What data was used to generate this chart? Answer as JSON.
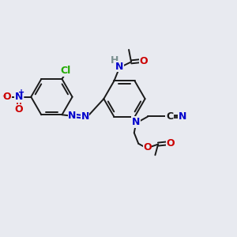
{
  "bg_color": "#e8eaf0",
  "bond_color": "#1a1a1a",
  "bond_width": 1.4,
  "colors": {
    "N": "#0000cc",
    "O": "#cc0000",
    "C": "#1a1a1a",
    "Cl": "#22aa00",
    "H": "#7a9090",
    "azo": "#0000cc"
  },
  "font_size": 9,
  "fig_size": [
    3.0,
    3.0
  ],
  "dpi": 100,
  "xlim": [
    0,
    12
  ],
  "ylim": [
    0,
    12
  ]
}
